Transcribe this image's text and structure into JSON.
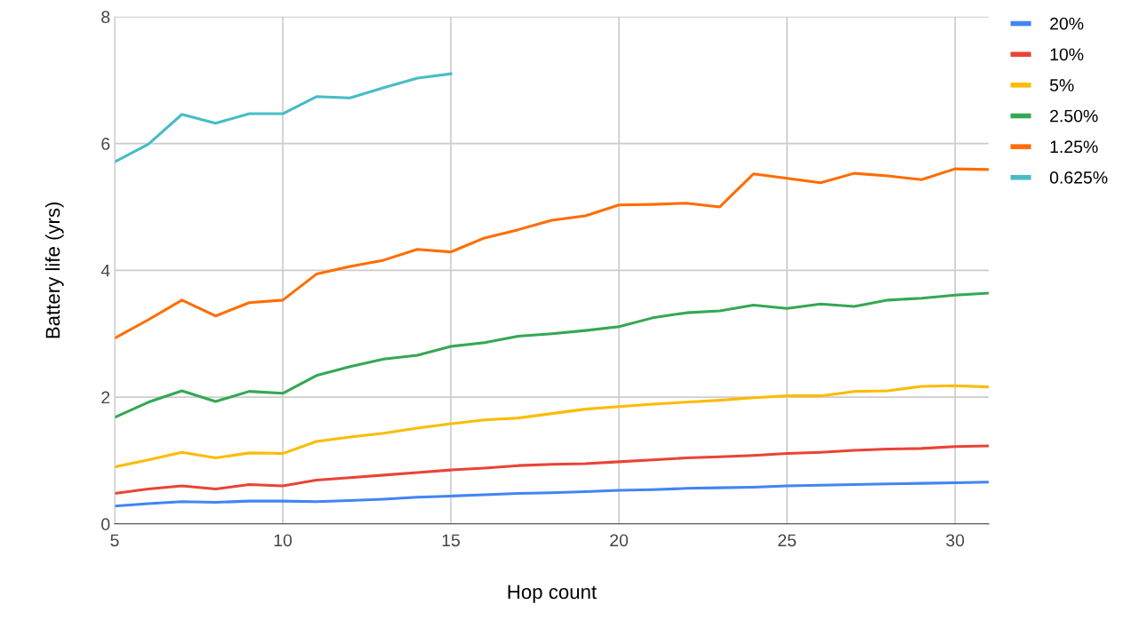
{
  "chart_data": {
    "type": "line",
    "xlabel": "Hop count",
    "ylabel": "Battery life (yrs)",
    "x": [
      5,
      6,
      7,
      8,
      9,
      10,
      11,
      12,
      13,
      14,
      15,
      16,
      17,
      18,
      19,
      20,
      21,
      22,
      23,
      24,
      25,
      26,
      27,
      28,
      29,
      30,
      31
    ],
    "xlim": [
      5,
      31
    ],
    "xticks": [
      5,
      10,
      15,
      20,
      25,
      30
    ],
    "ylim": [
      0,
      8
    ],
    "yticks": [
      0,
      2,
      4,
      6,
      8
    ],
    "grid": true,
    "legend": "top right",
    "marker": "none",
    "line_style": "solid",
    "series": [
      {
        "name": "20%",
        "color": "#4285f4",
        "values": [
          0.28,
          0.32,
          0.35,
          0.34,
          0.36,
          0.36,
          0.35,
          0.37,
          0.39,
          0.42,
          0.44,
          0.46,
          0.48,
          0.49,
          0.51,
          0.53,
          0.54,
          0.56,
          0.57,
          0.58,
          0.6,
          0.61,
          0.62,
          0.63,
          0.64,
          0.65,
          0.66
        ]
      },
      {
        "name": "10%",
        "color": "#ea4335",
        "values": [
          0.48,
          0.55,
          0.6,
          0.55,
          0.62,
          0.6,
          0.69,
          0.73,
          0.77,
          0.81,
          0.85,
          0.88,
          0.92,
          0.94,
          0.95,
          0.98,
          1.01,
          1.04,
          1.06,
          1.08,
          1.11,
          1.13,
          1.16,
          1.18,
          1.19,
          1.22,
          1.23
        ]
      },
      {
        "name": "5%",
        "color": "#fbbc04",
        "values": [
          0.9,
          1.01,
          1.13,
          1.04,
          1.12,
          1.11,
          1.3,
          1.37,
          1.43,
          1.51,
          1.58,
          1.64,
          1.67,
          1.74,
          1.81,
          1.85,
          1.89,
          1.92,
          1.95,
          1.99,
          2.02,
          2.02,
          2.09,
          2.1,
          2.17,
          2.18,
          2.16
        ]
      },
      {
        "name": "2.50%",
        "color": "#34a853",
        "values": [
          1.68,
          1.92,
          2.1,
          1.93,
          2.09,
          2.06,
          2.34,
          2.48,
          2.6,
          2.66,
          2.8,
          2.86,
          2.96,
          3.0,
          3.05,
          3.11,
          3.25,
          3.33,
          3.36,
          3.45,
          3.4,
          3.47,
          3.43,
          3.53,
          3.56,
          3.61,
          3.64
        ]
      },
      {
        "name": "1.25%",
        "color": "#ff6d01",
        "values": [
          2.93,
          3.22,
          3.53,
          3.28,
          3.49,
          3.53,
          3.94,
          4.06,
          4.16,
          4.33,
          4.29,
          4.51,
          4.64,
          4.79,
          4.86,
          5.03,
          5.04,
          5.06,
          5.0,
          5.52,
          5.45,
          5.38,
          5.53,
          5.49,
          5.43,
          5.6,
          5.59
        ]
      },
      {
        "name": "0.625%",
        "color": "#46bdc6",
        "values": [
          5.71,
          5.99,
          6.46,
          6.32,
          6.47,
          6.47,
          6.74,
          6.72,
          6.88,
          7.03,
          7.1,
          null,
          null,
          null,
          null,
          null,
          null,
          null,
          null,
          null,
          null,
          null,
          null,
          null,
          null,
          null,
          null
        ]
      }
    ]
  }
}
